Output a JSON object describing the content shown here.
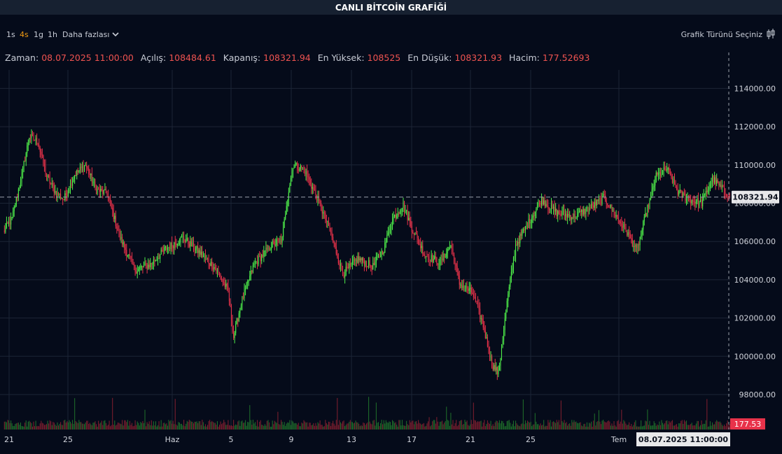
{
  "title": "CANLI BİTCOİN GRAFİĞİ",
  "toolbar": {
    "timeframes": [
      "1s",
      "4s",
      "1g",
      "1h"
    ],
    "active_timeframe": "4s",
    "more_label": "Daha fazlası",
    "chart_type_label": "Grafik Türünü Seçiniz"
  },
  "ohlc": {
    "time_label": "Zaman:",
    "time_value": "08.07.2025 11:00:00",
    "open_label": "Açılış:",
    "open_value": "108484.61",
    "close_label": "Kapanış:",
    "close_value": "108321.94",
    "high_label": "En Yüksek:",
    "high_value": "108525",
    "low_label": "En Düşük:",
    "low_value": "108321.93",
    "volume_label": "Hacim:",
    "volume_value": "177.52693"
  },
  "colors": {
    "background": "#050b1a",
    "up": "#4ff04a",
    "down": "#e8324a",
    "grid": "#1c2536"
  },
  "crosshair": {
    "price_label": "108321.94",
    "volume_label": "177.53",
    "time_label": "08.07.2025   11:00:00"
  },
  "chart_data": {
    "type": "candlestick",
    "title": "",
    "xlabel": "",
    "ylabel": "",
    "ylim": [
      97000,
      116000
    ],
    "yticks": [
      98000,
      100000,
      102000,
      104000,
      106000,
      108000,
      110000,
      112000,
      114000
    ],
    "ytick_labels": [
      "98000.00",
      "100000.00",
      "102000.00",
      "104000.00",
      "106000.00",
      "108000.00",
      "110000.00",
      "112000.00",
      "114000.00"
    ],
    "xticks": [
      "21",
      "25",
      "Haz",
      "5",
      "9",
      "13",
      "17",
      "21",
      "25",
      "Tem"
    ],
    "x_range": [
      "2025-05-21",
      "2025-07-08"
    ],
    "grid": true,
    "anchors": [
      {
        "t": 0,
        "p": 106500
      },
      {
        "t": 8,
        "p": 107200
      },
      {
        "t": 16,
        "p": 109200
      },
      {
        "t": 24,
        "p": 111500
      },
      {
        "t": 32,
        "p": 111200
      },
      {
        "t": 40,
        "p": 109400
      },
      {
        "t": 48,
        "p": 108600
      },
      {
        "t": 56,
        "p": 108200
      },
      {
        "t": 66,
        "p": 109500
      },
      {
        "t": 76,
        "p": 110000
      },
      {
        "t": 86,
        "p": 108700
      },
      {
        "t": 96,
        "p": 108500
      },
      {
        "t": 108,
        "p": 106200
      },
      {
        "t": 122,
        "p": 104500
      },
      {
        "t": 136,
        "p": 104800
      },
      {
        "t": 150,
        "p": 105600
      },
      {
        "t": 166,
        "p": 106200
      },
      {
        "t": 180,
        "p": 105500
      },
      {
        "t": 196,
        "p": 104600
      },
      {
        "t": 208,
        "p": 103400
      },
      {
        "t": 213,
        "p": 101000
      },
      {
        "t": 220,
        "p": 102800
      },
      {
        "t": 232,
        "p": 104800
      },
      {
        "t": 248,
        "p": 105800
      },
      {
        "t": 258,
        "p": 106100
      },
      {
        "t": 262,
        "p": 108000
      },
      {
        "t": 268,
        "p": 110000
      },
      {
        "t": 278,
        "p": 109800
      },
      {
        "t": 290,
        "p": 108300
      },
      {
        "t": 302,
        "p": 106600
      },
      {
        "t": 314,
        "p": 104300
      },
      {
        "t": 328,
        "p": 105100
      },
      {
        "t": 342,
        "p": 104700
      },
      {
        "t": 352,
        "p": 105600
      },
      {
        "t": 360,
        "p": 107200
      },
      {
        "t": 370,
        "p": 107900
      },
      {
        "t": 378,
        "p": 106700
      },
      {
        "t": 390,
        "p": 105300
      },
      {
        "t": 404,
        "p": 104900
      },
      {
        "t": 414,
        "p": 105800
      },
      {
        "t": 422,
        "p": 103800
      },
      {
        "t": 434,
        "p": 103300
      },
      {
        "t": 444,
        "p": 101600
      },
      {
        "t": 452,
        "p": 99600
      },
      {
        "t": 458,
        "p": 99100
      },
      {
        "t": 466,
        "p": 102800
      },
      {
        "t": 474,
        "p": 105800
      },
      {
        "t": 486,
        "p": 107000
      },
      {
        "t": 498,
        "p": 108200
      },
      {
        "t": 512,
        "p": 107500
      },
      {
        "t": 528,
        "p": 107300
      },
      {
        "t": 544,
        "p": 107800
      },
      {
        "t": 556,
        "p": 108300
      },
      {
        "t": 566,
        "p": 107400
      },
      {
        "t": 578,
        "p": 106400
      },
      {
        "t": 586,
        "p": 105500
      },
      {
        "t": 594,
        "p": 107300
      },
      {
        "t": 604,
        "p": 109400
      },
      {
        "t": 614,
        "p": 109800
      },
      {
        "t": 624,
        "p": 108600
      },
      {
        "t": 634,
        "p": 108200
      },
      {
        "t": 646,
        "p": 108000
      },
      {
        "t": 656,
        "p": 109300
      },
      {
        "t": 664,
        "p": 108800
      },
      {
        "t": 672,
        "p": 108321.94
      }
    ],
    "last_candle": {
      "time": "08.07.2025 11:00:00",
      "open": 108484.61,
      "high": 108525,
      "low": 108321.93,
      "close": 108321.94,
      "volume": 177.52693
    }
  }
}
